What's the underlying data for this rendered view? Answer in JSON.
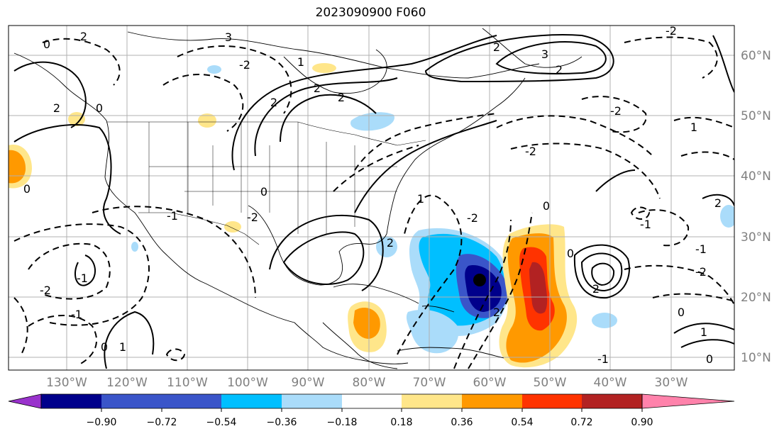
{
  "title": "2023090900 F060",
  "map": {
    "lon_labels": [
      "130°W",
      "120°W",
      "110°W",
      "100°W",
      "90°W",
      "80°W",
      "70°W",
      "60°W",
      "50°W",
      "40°W",
      "30°W"
    ],
    "lat_labels": [
      "60°N",
      "50°N",
      "40°N",
      "30°N",
      "20°N",
      "10°N"
    ],
    "contour_labels": [
      "0",
      "2",
      "3",
      "0",
      "2",
      "-2",
      "2",
      "1",
      "2",
      "3",
      "2",
      "2",
      "-2",
      "2",
      "0",
      "-1",
      "-2",
      "-1",
      "0",
      "2",
      "1",
      "-1",
      "-2",
      "0",
      "1",
      "-2",
      "-1",
      "-2",
      "-2",
      "0",
      "-2",
      "-1",
      "2",
      "0",
      "2",
      "1",
      "2",
      "-1",
      "0",
      "1",
      "0"
    ],
    "colors": {
      "land_line": "#000000",
      "grid": "#b0b0b0",
      "contour": "#000000"
    }
  },
  "colorbar": {
    "ticks": [
      "−0.90",
      "−0.72",
      "−0.54",
      "−0.36",
      "−0.18",
      "0.18",
      "0.36",
      "0.54",
      "0.72",
      "0.90"
    ],
    "colors": [
      "#9932cc",
      "#00008b",
      "#3a55c9",
      "#00bfff",
      "#aadcfa",
      "#ffffff",
      "#ffe68a",
      "#ff9900",
      "#ff3300",
      "#b22222",
      "#ff82ab"
    ]
  }
}
